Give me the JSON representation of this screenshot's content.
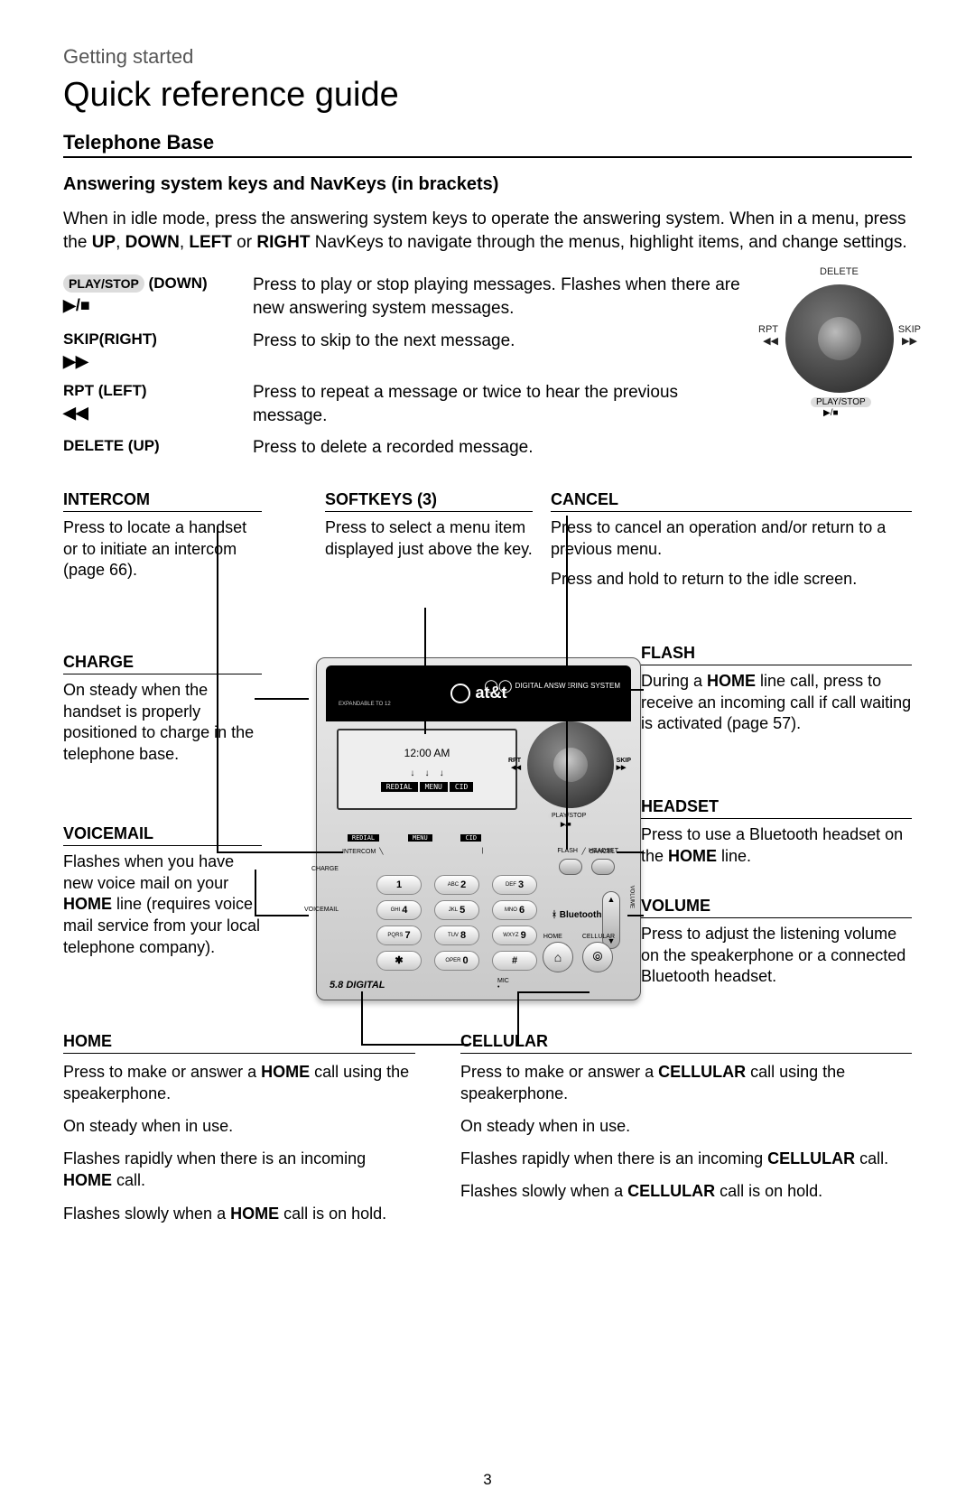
{
  "breadcrumb": "Getting started",
  "title": "Quick reference guide",
  "section": "Telephone Base",
  "subsection": "Answering system keys and NavKeys (in brackets)",
  "intro_parts": [
    "When in idle mode, press the answering system keys to operate the answering system. When in a menu, press the ",
    "UP",
    ", ",
    "DOWN",
    ", ",
    "LEFT",
    " or ",
    "RIGHT",
    " NavKeys to navigate through the menus, highlight items, and change settings."
  ],
  "navkeys": [
    {
      "pill": "PLAY/STOP",
      "paren": " (DOWN)",
      "icon": "▶/■",
      "desc": "Press to play or stop playing messages. Flashes when there are new answering system messages."
    },
    {
      "key": "SKIP(RIGHT)",
      "icon": "▶▶",
      "desc": "Press to skip to the next message."
    },
    {
      "key": "RPT (LEFT)",
      "icon": "◀◀",
      "desc": "Press to repeat a message or twice to hear the previous message."
    },
    {
      "key": "DELETE (UP)",
      "icon": "",
      "desc": "Press to delete a recorded message."
    }
  ],
  "navdial": {
    "top": "DELETE",
    "left": "RPT",
    "left_icon": "◀◀",
    "right": "SKIP",
    "right_icon": "▶▶",
    "bottom": "PLAY/STOP",
    "bottom_icon": "▶/■"
  },
  "callouts": {
    "intercom": {
      "title": "INTERCOM",
      "body": "Press to locate a handset or to initiate an intercom (page 66)."
    },
    "softkeys": {
      "title": "SOFTKEYS (3)",
      "body": "Press to select a menu item displayed just above the key."
    },
    "cancel": {
      "title": "CANCEL",
      "p1": "Press to cancel an operation and/or return to a previous menu.",
      "p2": "Press and hold to return to the idle screen."
    },
    "charge": {
      "title": "CHARGE",
      "body": "On steady when the handset is properly positioned to charge in the telephone base."
    },
    "flash": {
      "title": "FLASH",
      "pre": "During a ",
      "b": "HOME",
      "post": " line call, press to receive an incoming call if call waiting is activated (page 57)."
    },
    "voicemail": {
      "title": "VOICEMAIL",
      "pre": "Flashes when you have new voice mail on your ",
      "b": "HOME",
      "post": " line (requires voice mail service from your local telephone company)."
    },
    "headset": {
      "title": "HEADSET",
      "pre": "Press to use a Bluetooth headset on the ",
      "b": "HOME",
      "post": " line."
    },
    "volume": {
      "title": "VOLUME",
      "body": "Press to adjust the listening volume on the speakerphone or a connected Bluetooth headset."
    }
  },
  "home": {
    "title": "HOME",
    "p1_pre": "Press to make or answer a ",
    "p1_b": "HOME",
    "p1_post": " call using the speakerphone.",
    "p2": "On steady when in use.",
    "p3_pre": "Flashes rapidly when there is an incoming ",
    "p3_b": "HOME",
    "p3_post": " call.",
    "p4_pre": "Flashes slowly when a ",
    "p4_b": "HOME",
    "p4_post": " call is on hold."
  },
  "cellular": {
    "title": "CELLULAR",
    "p1_pre": "Press to make or answer a ",
    "p1_b": "CELLULAR",
    "p1_post": " call using the speakerphone.",
    "p2": "On steady when in use.",
    "p3_pre": "Flashes rapidly when there is an incoming ",
    "p3_b": "CELLULAR",
    "p3_post": " call.",
    "p4_pre": "Flashes slowly when a ",
    "p4_b": "CELLULAR",
    "p4_post": " call is on hold."
  },
  "device": {
    "brand": "at&t",
    "time": "12:00 AM",
    "softkeys": [
      "REDIAL",
      "MENU",
      "CID"
    ],
    "navpad": {
      "top": "DELETE",
      "left": "RPT",
      "right": "SKIP",
      "bottom": "PLAY/STOP",
      "left_icon": "◀◀",
      "right_icon": "▶▶",
      "bottom_icon": "▶/■"
    },
    "row_labels": {
      "intercom": "INTERCOM",
      "cancel": "CANCEL",
      "flash": "FLASH",
      "headset": "HEADSET",
      "home": "HOME",
      "cellular": "CELLULAR"
    },
    "indicators": {
      "charge": "CHARGE",
      "voicemail": "VOICEMAIL"
    },
    "keypad": [
      [
        {
          "n": "1",
          "l": ""
        },
        {
          "n": "2",
          "l": "ABC"
        },
        {
          "n": "3",
          "l": "DEF"
        }
      ],
      [
        {
          "n": "4",
          "l": "GHI"
        },
        {
          "n": "5",
          "l": "JKL"
        },
        {
          "n": "6",
          "l": "MNO"
        }
      ],
      [
        {
          "n": "7",
          "l": "PQRS"
        },
        {
          "n": "8",
          "l": "TUV"
        },
        {
          "n": "9",
          "l": "WXYZ"
        }
      ],
      [
        {
          "n": "✱",
          "l": ""
        },
        {
          "n": "0",
          "l": "OPER"
        },
        {
          "n": "#",
          "l": ""
        }
      ]
    ],
    "bluetooth": "Bluetooth",
    "digital": "5.8 DIGITAL",
    "mic": "MIC",
    "expandable": "EXPANDABLE TO 12",
    "qo": "DIGITAL ANSWERING SYSTEM",
    "volume": "VOLUME",
    "home_icon": "⌂",
    "cell_icon": "⦾"
  },
  "page": "3",
  "colors": {
    "text": "#000000",
    "bg": "#ffffff",
    "pill": "#dcdcdc",
    "device_body": "#d8d8d8"
  }
}
